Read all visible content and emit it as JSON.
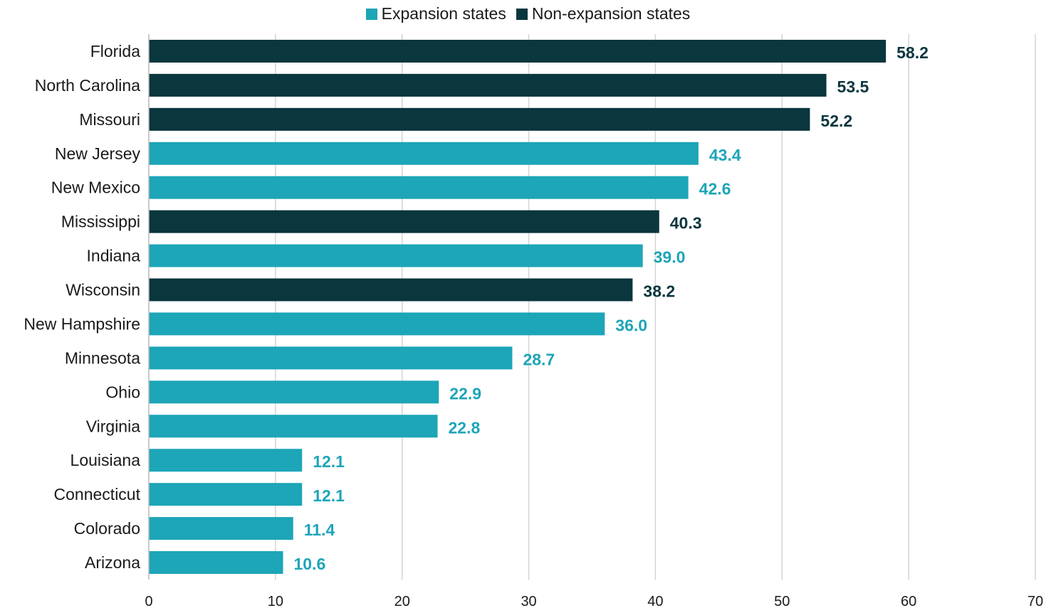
{
  "chart_data": {
    "type": "bar",
    "orientation": "horizontal",
    "title": "",
    "xlabel": "",
    "ylabel": "",
    "xlim": [
      0,
      70
    ],
    "xticks": [
      0,
      10,
      20,
      30,
      40,
      50,
      60,
      70
    ],
    "grid": "vertical",
    "legend_position": "top-center",
    "legend": [
      {
        "name": "Expansion states",
        "color": "#1DA5B8"
      },
      {
        "name": "Non-expansion states",
        "color": "#0A363E"
      }
    ],
    "categories": [
      "Florida",
      "North Carolina",
      "Missouri",
      "New Jersey",
      "New Mexico",
      "Mississippi",
      "Indiana",
      "Wisconsin",
      "New Hampshire",
      "Minnesota",
      "Ohio",
      "Virginia",
      "Louisiana",
      "Connecticut",
      "Colorado",
      "Arizona"
    ],
    "values": [
      58.2,
      53.5,
      52.2,
      43.4,
      42.6,
      40.3,
      39.0,
      38.2,
      36.0,
      28.7,
      22.9,
      22.8,
      12.1,
      12.1,
      11.4,
      10.6
    ],
    "value_labels": [
      "58.2",
      "53.5",
      "52.2",
      "43.4",
      "42.6",
      "40.3",
      "39.0",
      "38.2",
      "36.0",
      "28.7",
      "22.9",
      "22.8",
      "12.1",
      "12.1",
      "11.4",
      "10.6"
    ],
    "groups": [
      "Non-expansion states",
      "Non-expansion states",
      "Non-expansion states",
      "Expansion states",
      "Expansion states",
      "Non-expansion states",
      "Expansion states",
      "Non-expansion states",
      "Expansion states",
      "Expansion states",
      "Expansion states",
      "Expansion states",
      "Expansion states",
      "Expansion states",
      "Expansion states",
      "Expansion states"
    ]
  }
}
